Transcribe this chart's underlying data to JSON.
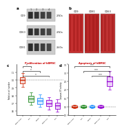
{
  "panel_A": {
    "label": "a",
    "band_names": [
      "CD9",
      "CD63",
      "CD81"
    ],
    "mw_labels": [
      "27kDa",
      "27kDa",
      "26kDa"
    ],
    "lanes": [
      1,
      2,
      3,
      4
    ],
    "bg_color": "#e0e0e0",
    "band_color": "#1a1a1a"
  },
  "panel_B": {
    "label": "b",
    "subpanels": [
      "CD9",
      "CD81",
      "CD63"
    ],
    "bg_colors": [
      "#c53030",
      "#b82828",
      "#bf3232"
    ]
  },
  "panel_C": {
    "label": "c",
    "title": "Proliferation of hBMSC",
    "ylabel": "Relative cell number",
    "groups": [
      "hBMSC+EXO",
      "EXO",
      "hBMSC",
      "hBMSC+EV",
      "NCO"
    ],
    "box_colors": [
      "#cc2200",
      "#228B22",
      "#1E90FF",
      "#9400D3",
      "#9400D3"
    ],
    "medians": [
      1.0,
      0.76,
      0.73,
      0.7,
      0.67
    ],
    "q1": [
      0.96,
      0.72,
      0.69,
      0.66,
      0.63
    ],
    "q3": [
      1.04,
      0.8,
      0.77,
      0.74,
      0.71
    ],
    "whisker_low": [
      0.91,
      0.68,
      0.65,
      0.62,
      0.59
    ],
    "whisker_high": [
      1.09,
      0.84,
      0.81,
      0.78,
      0.75
    ],
    "ylim": [
      0.55,
      1.2
    ],
    "yticks": [
      0.6,
      0.7,
      0.8,
      0.9,
      1.0,
      1.1
    ],
    "sig_pairs": [
      [
        0,
        1,
        "*"
      ],
      [
        0,
        2,
        "*"
      ],
      [
        0,
        3,
        "*"
      ]
    ],
    "ref_line": 1.0
  },
  "panel_D": {
    "label": "d",
    "title": "Apoptosis of hBMSC",
    "ylabel": "Caspase-3/7 activity",
    "groups": [
      "hBMSC+EXO",
      "EXO",
      "hBMSC",
      "hBMSC+EV",
      "NCO"
    ],
    "box_colors": [
      "#cc2200",
      "#228B22",
      "#1E90FF",
      "#9400D3",
      "#9400D3"
    ],
    "medians": [
      1.0,
      1.0,
      1.0,
      1.0,
      2.5
    ],
    "q1": [
      0.95,
      0.95,
      0.95,
      0.95,
      2.2
    ],
    "q3": [
      1.05,
      1.05,
      1.05,
      1.05,
      2.8
    ],
    "whisker_low": [
      0.9,
      0.9,
      0.9,
      0.9,
      2.0
    ],
    "whisker_high": [
      1.1,
      1.1,
      1.1,
      1.1,
      3.1
    ],
    "ylim": [
      0.5,
      3.5
    ],
    "yticks": [
      0.5,
      1.0,
      1.5,
      2.0,
      2.5,
      3.0,
      3.5
    ],
    "sig_pairs": [
      [
        0,
        4,
        "***"
      ],
      [
        1,
        4,
        "***"
      ],
      [
        2,
        4,
        "***"
      ]
    ],
    "ref_line": 1.0
  },
  "bg_color": "#ffffff"
}
